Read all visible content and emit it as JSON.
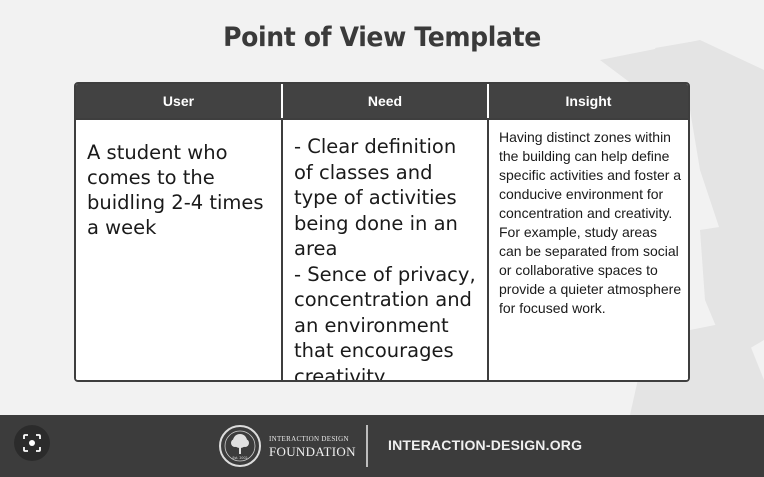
{
  "title": "Point of View Template",
  "table": {
    "headers": [
      "User",
      "Need",
      "Insight"
    ],
    "user": "A student who comes to the buidling 2-4 times a week",
    "need": [
      "- Clear definition of classes and type of activities being done in an area",
      "- Sence of privacy, concentration and an environment that encourages creativity"
    ],
    "insight": "Having distinct zones within the building can help define specific activities and foster a conducive environment for concentration and creativity. For example, study areas can be separated from social or collaborative spaces to provide a quieter atmosphere for focused work."
  },
  "footer": {
    "logo_line1": "INTERACTION DESIGN",
    "logo_line2": "FOUNDATION",
    "logo_est": "Est. 2002",
    "site": "INTERACTION-DESIGN.ORG"
  },
  "icons": {
    "lens": "visual-search-icon",
    "logo": "tree-emblem-icon"
  },
  "colors": {
    "background": "#f2f2f2",
    "header": "#424242",
    "footer": "#3c3c3c",
    "title": "#3a3a3a"
  }
}
